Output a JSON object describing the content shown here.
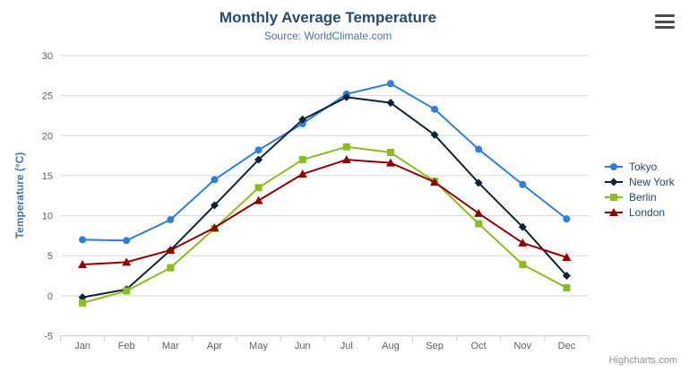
{
  "header": {
    "title": "Monthly Average Temperature",
    "subtitle": "Source: WorldClimate.com"
  },
  "menu": {
    "icon": "hamburger-icon"
  },
  "credits": {
    "label": "Highcharts.com"
  },
  "chart_data": {
    "type": "line",
    "title": "Monthly Average Temperature",
    "subtitle": "Source: WorldClimate.com",
    "categories": [
      "Jan",
      "Feb",
      "Mar",
      "Apr",
      "May",
      "Jun",
      "Jul",
      "Aug",
      "Sep",
      "Oct",
      "Nov",
      "Dec"
    ],
    "series": [
      {
        "name": "Tokyo",
        "color": "#2f7ed8",
        "marker": "circle",
        "values": [
          7.0,
          6.9,
          9.5,
          14.5,
          18.2,
          21.5,
          25.2,
          26.5,
          23.3,
          18.3,
          13.9,
          9.6
        ]
      },
      {
        "name": "New York",
        "color": "#0d233a",
        "marker": "diamond",
        "values": [
          -0.2,
          0.8,
          5.7,
          11.3,
          17.0,
          22.0,
          24.8,
          24.1,
          20.1,
          14.1,
          8.6,
          2.5
        ]
      },
      {
        "name": "Berlin",
        "color": "#8bbc21",
        "marker": "square",
        "values": [
          -0.9,
          0.6,
          3.5,
          8.4,
          13.5,
          17.0,
          18.6,
          17.9,
          14.3,
          9.0,
          3.9,
          1.0
        ]
      },
      {
        "name": "London",
        "color": "#910000",
        "marker": "triangle",
        "values": [
          3.9,
          4.2,
          5.7,
          8.5,
          11.9,
          15.2,
          17.0,
          16.6,
          14.2,
          10.3,
          6.6,
          4.8
        ]
      }
    ],
    "xlabel": "",
    "ylabel": "Temperature (°C)",
    "ylim": [
      -5,
      30
    ],
    "yticks": [
      -5,
      0,
      5,
      10,
      15,
      20,
      25,
      30
    ],
    "grid": true,
    "legend_position": "right",
    "palette": {
      "grid_color": "#d8d8d8",
      "axis_line_color": "#c0d0e0",
      "tick_label_color": "#606060",
      "axis_title_color": "#4d759e",
      "title_color": "#274b6d",
      "subtitle_color": "#4d759e",
      "legend_text_color": "#274b6d",
      "credits_color": "#909090"
    }
  }
}
